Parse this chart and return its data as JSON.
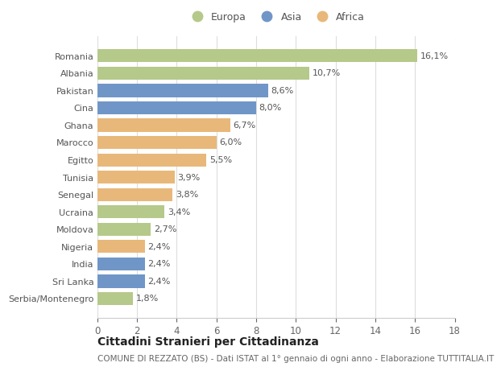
{
  "countries": [
    "Romania",
    "Albania",
    "Pakistan",
    "Cina",
    "Ghana",
    "Marocco",
    "Egitto",
    "Tunisia",
    "Senegal",
    "Ucraina",
    "Moldova",
    "Nigeria",
    "India",
    "Sri Lanka",
    "Serbia/Montenegro"
  ],
  "values": [
    16.1,
    10.7,
    8.6,
    8.0,
    6.7,
    6.0,
    5.5,
    3.9,
    3.8,
    3.4,
    2.7,
    2.4,
    2.4,
    2.4,
    1.8
  ],
  "labels": [
    "16,1%",
    "10,7%",
    "8,6%",
    "8,0%",
    "6,7%",
    "6,0%",
    "5,5%",
    "3,9%",
    "3,8%",
    "3,4%",
    "2,7%",
    "2,4%",
    "2,4%",
    "2,4%",
    "1,8%"
  ],
  "continents": [
    "Europa",
    "Europa",
    "Asia",
    "Asia",
    "Africa",
    "Africa",
    "Africa",
    "Africa",
    "Africa",
    "Europa",
    "Europa",
    "Africa",
    "Asia",
    "Asia",
    "Europa"
  ],
  "colors": {
    "Europa": "#b5c98a",
    "Asia": "#7096c8",
    "Africa": "#e8b87a"
  },
  "xlim": [
    0,
    18
  ],
  "xticks": [
    0,
    2,
    4,
    6,
    8,
    10,
    12,
    14,
    16,
    18
  ],
  "title": "Cittadini Stranieri per Cittadinanza",
  "subtitle": "COMUNE DI REZZATO (BS) - Dati ISTAT al 1° gennaio di ogni anno - Elaborazione TUTTITALIA.IT",
  "bg_color": "#ffffff",
  "grid_color": "#dddddd",
  "bar_height": 0.75,
  "label_fontsize": 8.0,
  "ytick_fontsize": 8.0,
  "xtick_fontsize": 8.5,
  "label_color": "#555555",
  "ytick_color": "#555555",
  "title_fontsize": 10,
  "subtitle_fontsize": 7.5
}
